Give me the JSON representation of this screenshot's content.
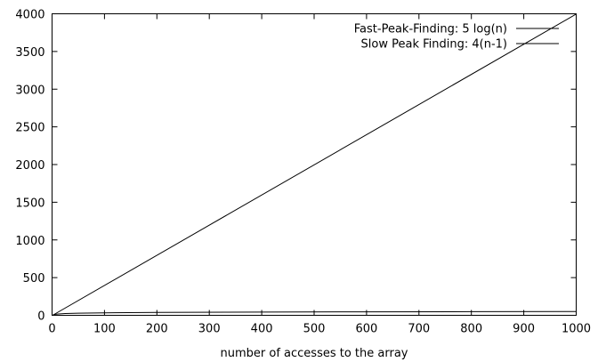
{
  "chart_data": {
    "type": "line",
    "xlabel": "number of accesses to the array",
    "ylabel": "",
    "xlim": [
      0,
      1000
    ],
    "ylim": [
      0,
      4000
    ],
    "x_ticks": [
      0,
      100,
      200,
      300,
      400,
      500,
      600,
      700,
      800,
      900,
      1000
    ],
    "y_ticks": [
      0,
      500,
      1000,
      1500,
      2000,
      2500,
      3000,
      3500,
      4000
    ],
    "grid": false,
    "legend_position": "top-right",
    "series": [
      {
        "name": "Fast-Peak-Finding: 5 log(n)",
        "color": "#000000",
        "x": [
          1,
          5,
          10,
          25,
          50,
          100,
          200,
          400,
          600,
          800,
          1000
        ],
        "y": [
          0,
          11.6,
          16.6,
          23.2,
          28.2,
          33.2,
          38.2,
          43.2,
          46.1,
          48.2,
          49.8
        ]
      },
      {
        "name": "Slow Peak Finding: 4(n-1)",
        "color": "#000000",
        "x": [
          1,
          1000
        ],
        "y": [
          0,
          3996
        ]
      }
    ]
  }
}
